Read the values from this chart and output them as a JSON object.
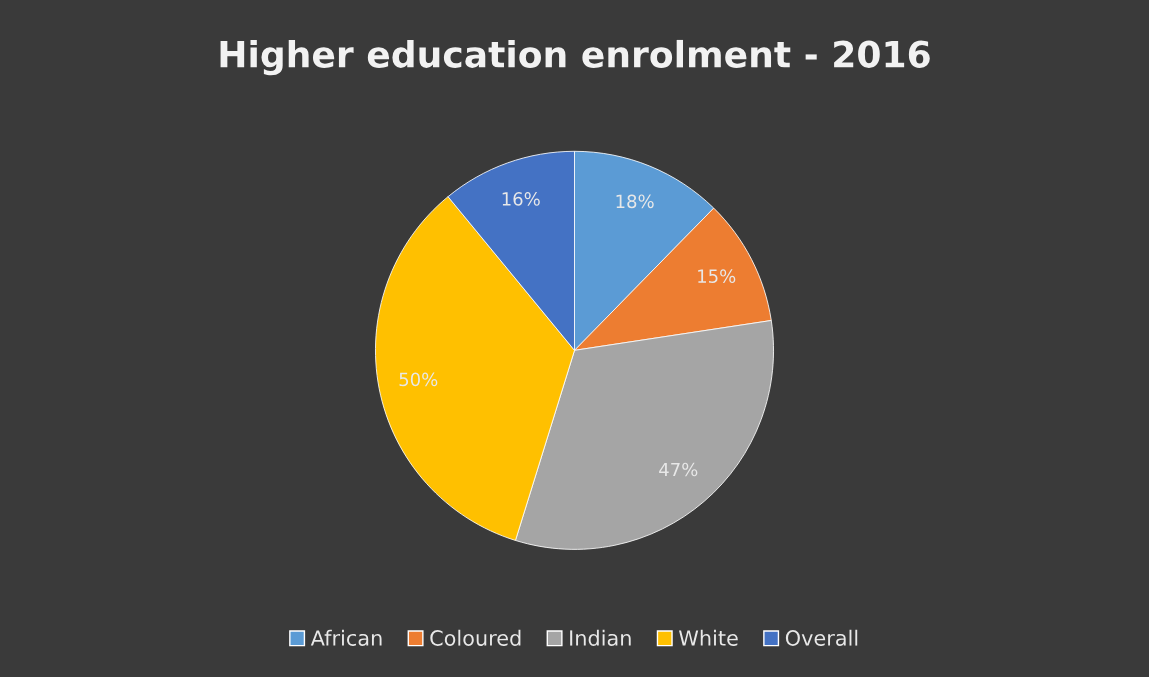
{
  "chart_data": {
    "type": "pie",
    "title": "Higher education enrolment - 2016",
    "categories": [
      "African",
      "Coloured",
      "Indian",
      "White",
      "Overall"
    ],
    "values": [
      18,
      15,
      47,
      50,
      16
    ],
    "colors": [
      "#5b9bd5",
      "#ed7d31",
      "#a5a5a5",
      "#ffc000",
      "#4472c4"
    ],
    "value_labels": [
      "18%",
      "15%",
      "47%",
      "50%",
      "16%"
    ],
    "legend": "bottom"
  }
}
